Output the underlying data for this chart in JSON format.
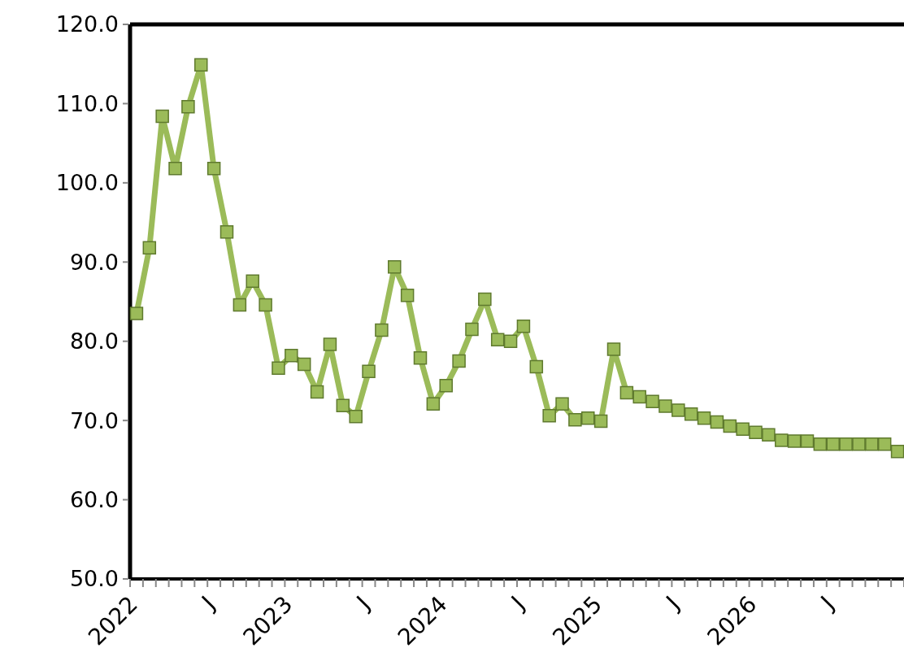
{
  "chart_data": {
    "type": "line",
    "categories": [
      "2022",
      null,
      null,
      null,
      null,
      null,
      "J",
      null,
      null,
      null,
      null,
      null,
      "2023",
      null,
      null,
      null,
      null,
      null,
      "J",
      null,
      null,
      null,
      null,
      null,
      "2024",
      null,
      null,
      null,
      null,
      null,
      "J",
      null,
      null,
      null,
      null,
      null,
      "2025",
      null,
      null,
      null,
      null,
      null,
      "J",
      null,
      null,
      null,
      null,
      null,
      "2026",
      null,
      null,
      null,
      null,
      null,
      "J",
      null,
      null,
      null,
      null,
      null
    ],
    "series": [
      {
        "color": "#9bbb59",
        "values": [
          83.5,
          91.8,
          108.4,
          101.8,
          109.6,
          114.9,
          101.8,
          93.8,
          84.6,
          87.6,
          84.6,
          76.6,
          78.2,
          77.1,
          73.6,
          79.6,
          71.9,
          70.5,
          76.2,
          81.4,
          89.4,
          85.8,
          77.9,
          72.1,
          74.4,
          77.5,
          81.5,
          85.3,
          80.2,
          80.0,
          81.9,
          76.8,
          70.6,
          72.1,
          70.1,
          70.3,
          69.9,
          79.0,
          73.5,
          73.0,
          72.4,
          71.8,
          71.3,
          70.8,
          70.3,
          69.8,
          69.3,
          68.9,
          68.5,
          68.2,
          67.5,
          67.4,
          67.4,
          67.0,
          67.0,
          67.0,
          67.0,
          67.0,
          67.0,
          66.1
        ]
      }
    ],
    "ylim": [
      50,
      120
    ],
    "yticks": [
      {
        "value": 50,
        "label": "50.0"
      },
      {
        "value": 60,
        "label": "60.0"
      },
      {
        "value": 70,
        "label": "70.0"
      },
      {
        "value": 80,
        "label": "80.0"
      },
      {
        "value": 90,
        "label": "90.0"
      },
      {
        "value": 100,
        "label": "100.0"
      },
      {
        "value": 110,
        "label": "110.0"
      },
      {
        "value": 120,
        "label": "120.0"
      }
    ],
    "marker": "square",
    "line_style": "solid",
    "grid": false
  }
}
